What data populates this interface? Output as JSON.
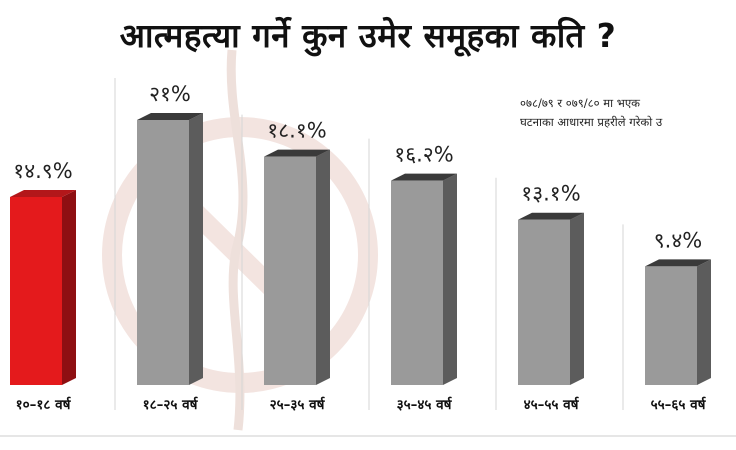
{
  "title": "आत्महत्या गर्ने कुन उमेर समूहका कति ?",
  "note": {
    "line1": "०७८/७९ र ०७९/८० मा भएक",
    "line2": "घटनाका आधारमा प्रहरीले गरेको उ"
  },
  "colors": {
    "highlight": "#e41a1c",
    "bar": "#9a9a9a",
    "bar_side": "#5c5c5c",
    "bar_top": "#3a3a3a"
  },
  "chart_data": {
    "type": "bar",
    "title": "आत्महत्या गर्ने कुन उमेर समूहका कति ?",
    "categories": [
      "१०–१८ वर्ष",
      "१८–२५ वर्ष",
      "२५–३५ वर्ष",
      "३५–४५ वर्ष",
      "४५–५५ वर्ष",
      "५५–६५ वर्ष"
    ],
    "values": [
      14.9,
      21,
      18.1,
      16.2,
      13.1,
      9.4
    ],
    "value_labels": [
      "१४.९%",
      "२१%",
      "१८.१%",
      "१६.२%",
      "१३.१%",
      "९.४%"
    ],
    "unit": "%",
    "highlighted_index": 0,
    "ylim": [
      0,
      21
    ],
    "grid": false,
    "legend": "none"
  }
}
